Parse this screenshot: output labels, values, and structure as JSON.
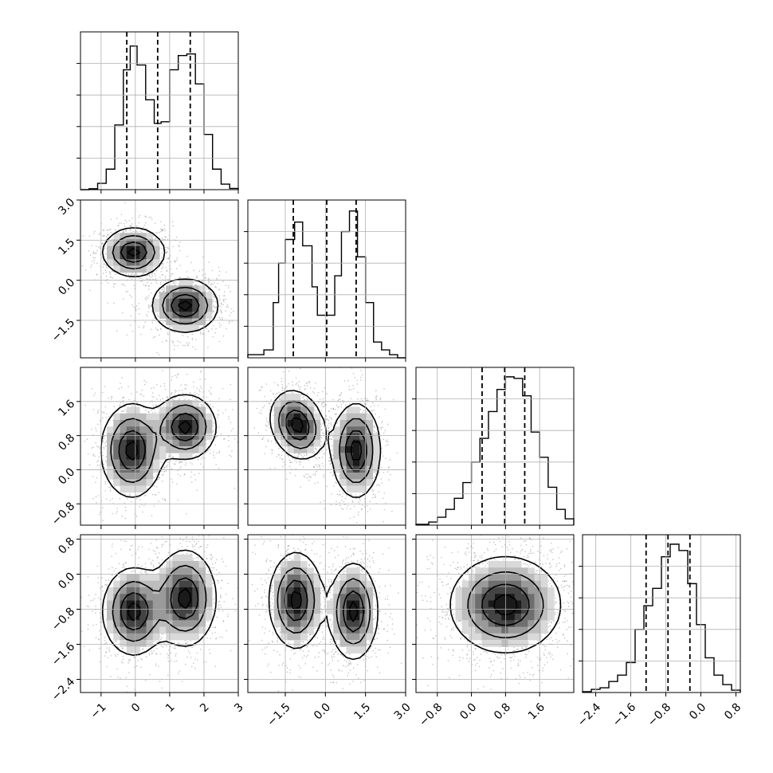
{
  "chart_data": {
    "type": "corner",
    "style": {
      "frame_color": "#000000",
      "grid_color": "#b0b0b0",
      "hist_color": "#000000",
      "quantile_line_color": "#000000",
      "scatter_color": "#7f7f7f",
      "density_colors": [
        "#ffffff",
        "#d9d9d9",
        "#bdbdbd",
        "#9a9a9a",
        "#6e6e6e",
        "#444444",
        "#1a1a1a"
      ],
      "grid": true
    },
    "variables": [
      {
        "index": 0,
        "range": [
          -1.6,
          3.0
        ],
        "ticks": [
          -1,
          0,
          1,
          2,
          3
        ],
        "tick_labels": [
          "−1",
          "0",
          "1",
          "2",
          "3"
        ],
        "quantiles": [
          -0.25,
          0.65,
          1.6
        ],
        "hist": [
          [
            -1.6,
            0.0
          ],
          [
            -1.35,
            0.006
          ],
          [
            -1.1,
            0.04
          ],
          [
            -0.85,
            0.13
          ],
          [
            -0.6,
            0.41
          ],
          [
            -0.35,
            0.76
          ],
          [
            -0.15,
            0.91
          ],
          [
            0.05,
            0.79
          ],
          [
            0.3,
            0.57
          ],
          [
            0.55,
            0.42
          ],
          [
            0.75,
            0.43
          ],
          [
            1.0,
            0.76
          ],
          [
            1.25,
            0.85
          ],
          [
            1.5,
            0.86
          ],
          [
            1.75,
            0.67
          ],
          [
            2.0,
            0.35
          ],
          [
            2.25,
            0.13
          ],
          [
            2.5,
            0.035
          ],
          [
            2.75,
            0.008
          ],
          [
            3.0,
            0.0
          ]
        ]
      },
      {
        "index": 1,
        "range": [
          -2.9,
          3.0
        ],
        "ticks": [
          -1.5,
          0.0,
          1.5,
          3.0
        ],
        "tick_labels": [
          "−1.5",
          "0.0",
          "1.5",
          "3.0"
        ],
        "quantiles": [
          -1.2,
          0.05,
          1.15
        ],
        "hist": [
          [
            -2.9,
            0.02
          ],
          [
            -2.3,
            0.05
          ],
          [
            -1.95,
            0.35
          ],
          [
            -1.75,
            0.6
          ],
          [
            -1.5,
            0.75
          ],
          [
            -1.15,
            0.86
          ],
          [
            -0.85,
            0.71
          ],
          [
            -0.5,
            0.45
          ],
          [
            -0.3,
            0.27
          ],
          [
            0.1,
            0.27
          ],
          [
            0.35,
            0.52
          ],
          [
            0.6,
            0.8
          ],
          [
            0.9,
            0.93
          ],
          [
            1.2,
            0.64
          ],
          [
            1.5,
            0.35
          ],
          [
            1.8,
            0.1
          ],
          [
            2.1,
            0.05
          ],
          [
            2.4,
            0.02
          ],
          [
            2.7,
            0.0
          ],
          [
            3.0,
            0.0
          ]
        ]
      },
      {
        "index": 2,
        "range": [
          -1.3,
          2.4
        ],
        "ticks": [
          -0.8,
          0.0,
          0.8,
          1.6
        ],
        "tick_labels": [
          "−0.8",
          "0.0",
          "0.8",
          "1.6"
        ],
        "quantiles": [
          0.25,
          0.78,
          1.25
        ],
        "hist": [
          [
            -1.3,
            0.005
          ],
          [
            -1.0,
            0.02
          ],
          [
            -0.8,
            0.05
          ],
          [
            -0.6,
            0.1
          ],
          [
            -0.4,
            0.17
          ],
          [
            -0.2,
            0.27
          ],
          [
            0.0,
            0.4
          ],
          [
            0.2,
            0.55
          ],
          [
            0.4,
            0.72
          ],
          [
            0.6,
            0.86
          ],
          [
            0.8,
            0.94
          ],
          [
            1.0,
            0.93
          ],
          [
            1.2,
            0.82
          ],
          [
            1.4,
            0.59
          ],
          [
            1.6,
            0.43
          ],
          [
            1.8,
            0.24
          ],
          [
            2.0,
            0.1
          ],
          [
            2.2,
            0.04
          ],
          [
            2.4,
            0.0
          ]
        ]
      },
      {
        "index": 3,
        "range": [
          -2.7,
          0.9
        ],
        "ticks": [
          -2.4,
          -1.6,
          -0.8,
          0.0,
          0.8
        ],
        "tick_labels": [
          "−2.4",
          "−1.6",
          "−0.8",
          "0.0",
          "0.8"
        ],
        "quantiles": [
          -1.25,
          -0.75,
          -0.25
        ],
        "hist": [
          [
            -2.7,
            0.005
          ],
          [
            -2.5,
            0.02
          ],
          [
            -2.3,
            0.03
          ],
          [
            -2.1,
            0.07
          ],
          [
            -1.9,
            0.11
          ],
          [
            -1.7,
            0.19
          ],
          [
            -1.5,
            0.4
          ],
          [
            -1.3,
            0.55
          ],
          [
            -1.1,
            0.66
          ],
          [
            -0.9,
            0.86
          ],
          [
            -0.7,
            0.94
          ],
          [
            -0.5,
            0.9
          ],
          [
            -0.3,
            0.69
          ],
          [
            -0.1,
            0.43
          ],
          [
            0.1,
            0.22
          ],
          [
            0.3,
            0.11
          ],
          [
            0.5,
            0.05
          ],
          [
            0.7,
            0.015
          ],
          [
            0.9,
            0.0
          ]
        ]
      }
    ],
    "pairs": [
      {
        "x": 0,
        "y": 1,
        "modes": [
          {
            "center": [
              -0.05,
              1.05
            ],
            "sigma": [
              0.45,
              0.45
            ],
            "rho": 0.0,
            "weight": 1.0
          },
          {
            "center": [
              1.45,
              -0.95
            ],
            "sigma": [
              0.48,
              0.5
            ],
            "rho": 0.0,
            "weight": 1.0
          }
        ]
      },
      {
        "x": 0,
        "y": 2,
        "modes": [
          {
            "center": [
              -0.1,
              0.45
            ],
            "sigma": [
              0.45,
              0.55
            ],
            "rho": 0.0,
            "weight": 1.0
          },
          {
            "center": [
              1.45,
              1.0
            ],
            "sigma": [
              0.45,
              0.38
            ],
            "rho": 0.0,
            "weight": 1.0
          }
        ]
      },
      {
        "x": 1,
        "y": 2,
        "modes": [
          {
            "center": [
              -1.05,
              1.05
            ],
            "sigma": [
              0.5,
              0.4
            ],
            "rho": -0.2,
            "weight": 1.0
          },
          {
            "center": [
              1.15,
              0.45
            ],
            "sigma": [
              0.45,
              0.55
            ],
            "rho": 0.0,
            "weight": 1.0
          }
        ]
      },
      {
        "x": 0,
        "y": 3,
        "modes": [
          {
            "center": [
              -0.05,
              -0.85
            ],
            "sigma": [
              0.45,
              0.5
            ],
            "rho": 0.0,
            "weight": 1.0
          },
          {
            "center": [
              1.45,
              -0.55
            ],
            "sigma": [
              0.45,
              0.55
            ],
            "rho": 0.0,
            "weight": 1.0
          }
        ]
      },
      {
        "x": 1,
        "y": 3,
        "modes": [
          {
            "center": [
              -1.1,
              -0.6
            ],
            "sigma": [
              0.5,
              0.55
            ],
            "rho": 0.0,
            "weight": 1.0
          },
          {
            "center": [
              1.05,
              -0.85
            ],
            "sigma": [
              0.45,
              0.55
            ],
            "rho": 0.0,
            "weight": 1.0
          }
        ]
      },
      {
        "x": 2,
        "y": 3,
        "modes": [
          {
            "center": [
              0.8,
              -0.7
            ],
            "sigma": [
              0.65,
              0.55
            ],
            "rho": 0.0,
            "weight": 1.0
          }
        ]
      }
    ]
  }
}
